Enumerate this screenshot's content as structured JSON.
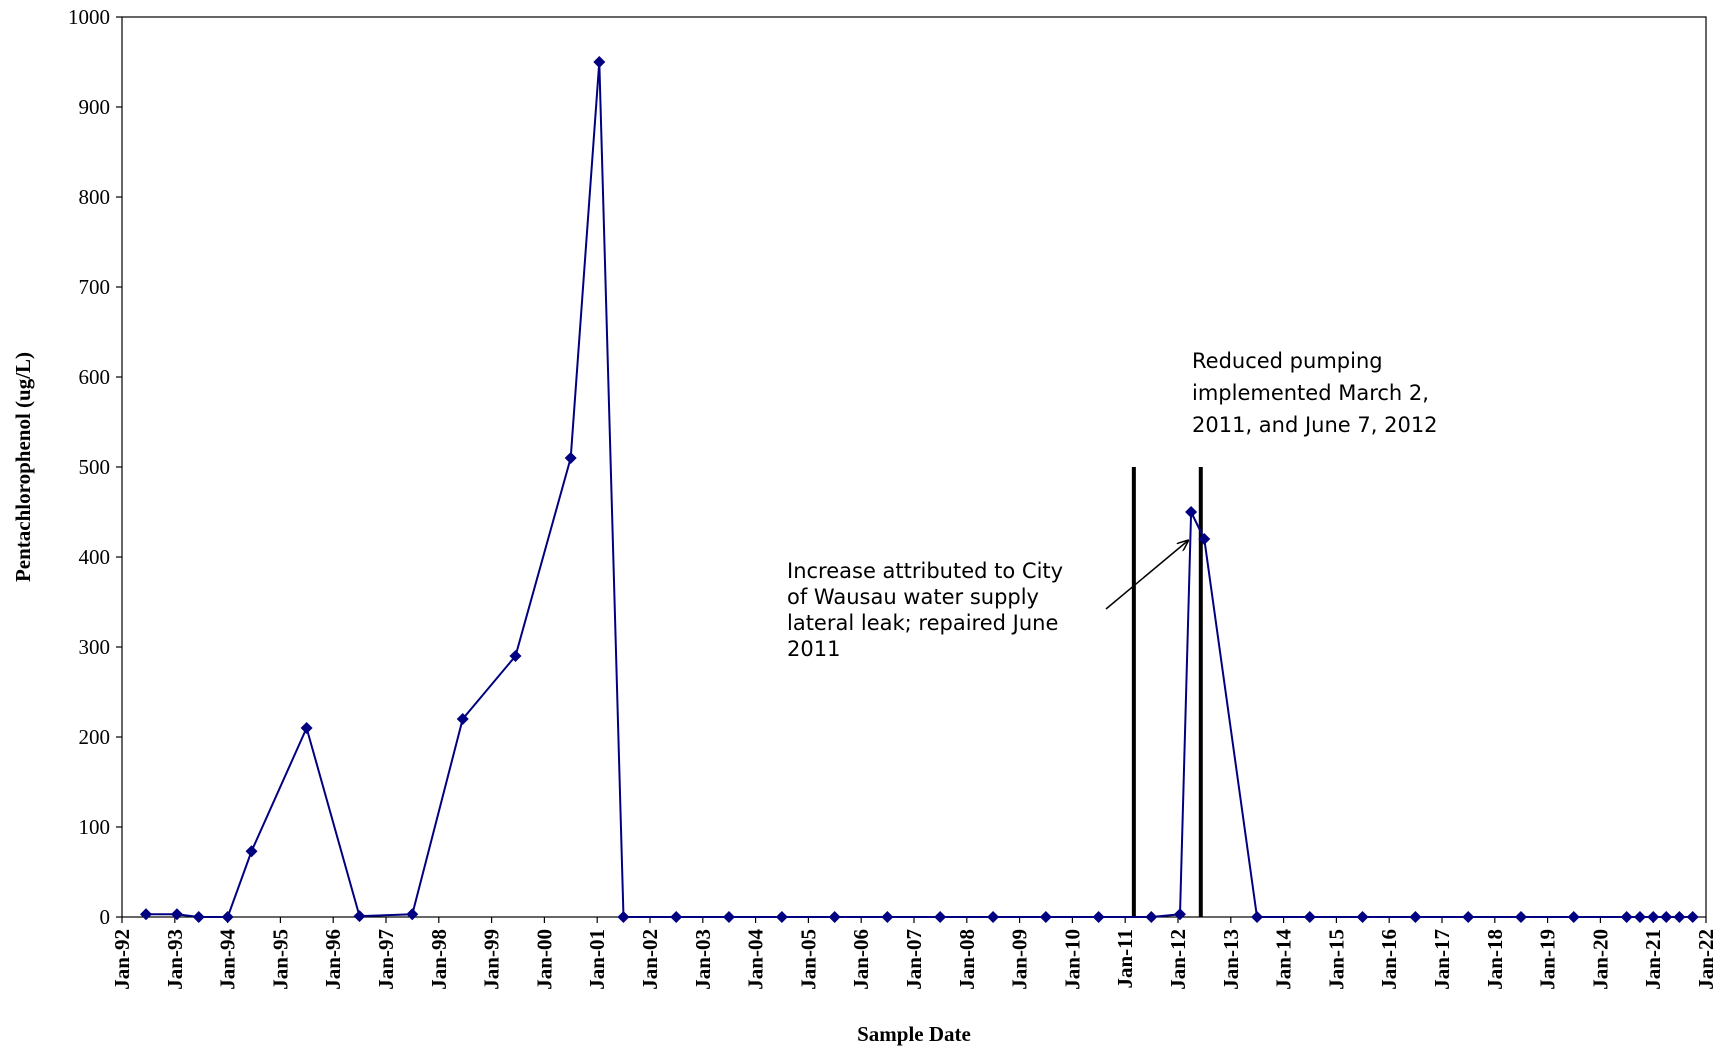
{
  "chart_data": {
    "type": "line",
    "xlabel": "Sample Date",
    "ylabel": "Pentachlorophenol (ug/L)",
    "ylim": [
      0,
      1000
    ],
    "xlim": [
      "1992-01-01",
      "2022-01-01"
    ],
    "y_ticks": [
      "0",
      "100",
      "200",
      "300",
      "400",
      "500",
      "600",
      "700",
      "800",
      "900",
      "1000"
    ],
    "x_ticks": [
      "Jan-92",
      "Jan-93",
      "Jan-94",
      "Jan-95",
      "Jan-96",
      "Jan-97",
      "Jan-98",
      "Jan-99",
      "Jan-00",
      "Jan-01",
      "Jan-02",
      "Jan-03",
      "Jan-04",
      "Jan-05",
      "Jan-06",
      "Jan-07",
      "Jan-08",
      "Jan-09",
      "Jan-10",
      "Jan-11",
      "Jan-12",
      "Jan-13",
      "Jan-14",
      "Jan-15",
      "Jan-16",
      "Jan-17",
      "Jan-18",
      "Jan-19",
      "Jan-20",
      "Jan-21",
      "Jan-22"
    ],
    "line_color": "#000080",
    "series": [
      {
        "points": [
          {
            "x": "1992-06-15",
            "y": 3
          },
          {
            "x": "1993-01-15",
            "y": 3
          },
          {
            "x": "1993-06-15",
            "y": 0
          },
          {
            "x": "1994-01-01",
            "y": 0
          },
          {
            "x": "1994-06-15",
            "y": 73
          },
          {
            "x": "1995-07-01",
            "y": 210
          },
          {
            "x": "1996-07-01",
            "y": 1
          },
          {
            "x": "1997-07-01",
            "y": 3
          },
          {
            "x": "1998-06-15",
            "y": 220
          },
          {
            "x": "1999-06-15",
            "y": 290
          },
          {
            "x": "2000-07-01",
            "y": 510
          },
          {
            "x": "2001-01-15",
            "y": 950
          },
          {
            "x": "2001-07-01",
            "y": 0
          },
          {
            "x": "2002-07-01",
            "y": 0
          },
          {
            "x": "2003-07-01",
            "y": 0
          },
          {
            "x": "2004-07-01",
            "y": 0
          },
          {
            "x": "2005-07-01",
            "y": 0
          },
          {
            "x": "2006-07-01",
            "y": 0
          },
          {
            "x": "2007-07-01",
            "y": 0
          },
          {
            "x": "2008-07-01",
            "y": 0
          },
          {
            "x": "2009-07-01",
            "y": 0
          },
          {
            "x": "2010-07-01",
            "y": 0
          },
          {
            "x": "2011-07-01",
            "y": 0
          },
          {
            "x": "2012-01-15",
            "y": 3
          },
          {
            "x": "2012-04-01",
            "y": 450
          },
          {
            "x": "2012-07-01",
            "y": 420
          },
          {
            "x": "2013-07-01",
            "y": 0
          },
          {
            "x": "2014-07-01",
            "y": 0
          },
          {
            "x": "2015-07-01",
            "y": 0
          },
          {
            "x": "2016-07-01",
            "y": 0
          },
          {
            "x": "2017-07-01",
            "y": 0
          },
          {
            "x": "2018-07-01",
            "y": 0
          },
          {
            "x": "2019-07-01",
            "y": 0
          },
          {
            "x": "2020-07-01",
            "y": 0
          },
          {
            "x": "2020-10-01",
            "y": 0
          },
          {
            "x": "2021-01-01",
            "y": 0
          },
          {
            "x": "2021-04-01",
            "y": 0
          },
          {
            "x": "2021-07-01",
            "y": 0
          },
          {
            "x": "2021-10-01",
            "y": 0
          }
        ]
      }
    ],
    "reference_lines": [
      {
        "x": "2011-03-02",
        "y": 500
      },
      {
        "x": "2012-06-07",
        "y": 500
      }
    ],
    "annotations": [
      {
        "lines": [
          "Reduced pumping",
          "implemented March 2,",
          "2011, and June 7, 2012"
        ]
      },
      {
        "lines": [
          "Increase attributed to City",
          "of Wausau water supply",
          "lateral leak; repaired June",
          "2011"
        ],
        "arrow_to": {
          "x": "2012-04-01",
          "y": 415
        }
      }
    ]
  }
}
